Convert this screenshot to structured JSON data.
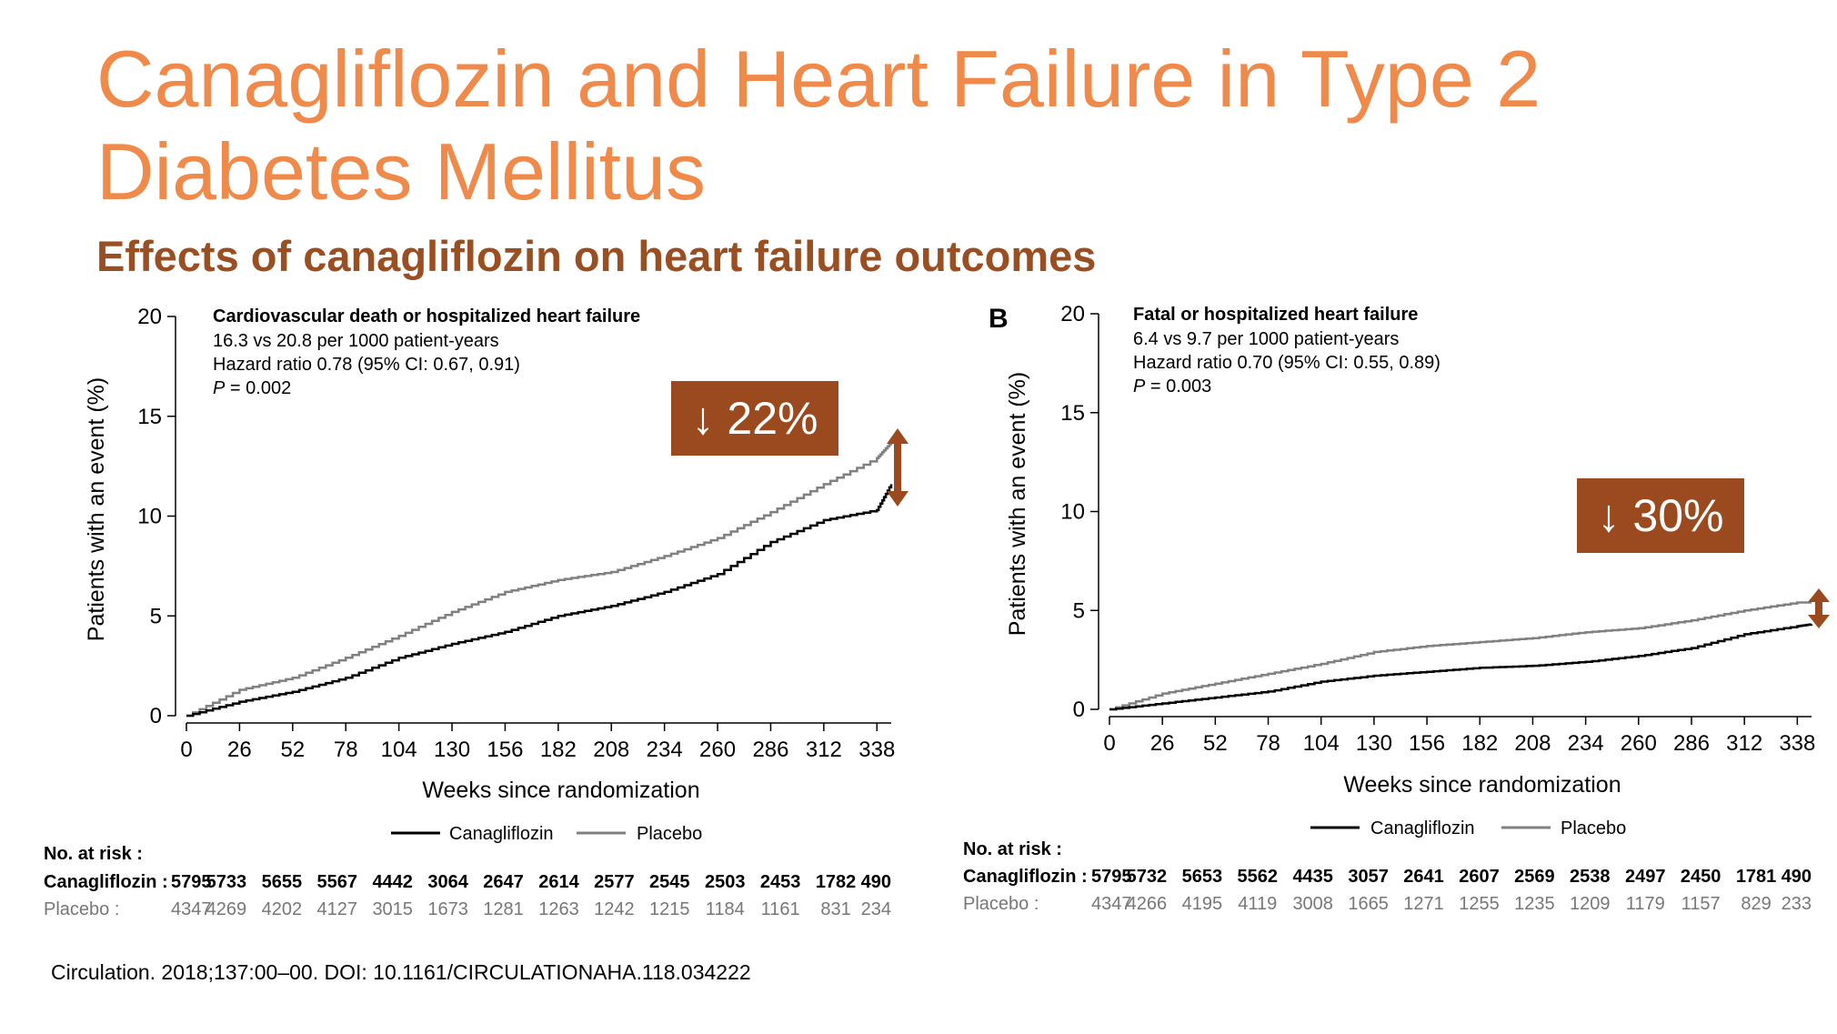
{
  "slide": {
    "title": "Canagliflozin and Heart Failure in Type 2 Diabetes Mellitus",
    "subtitle": "Effects of canagliflozin on heart failure outcomes",
    "citation": "Circulation. 2018;137:00–00. DOI: 10.1161/CIRCULATIONAHA.118.034222",
    "panel_marker": "B"
  },
  "colors": {
    "title": "#f08a4b",
    "subtitle": "#9a4f22",
    "reduction_box": "#9b4a1f",
    "canagliflozin_line": "#000000",
    "placebo_line": "#808080"
  },
  "chart_data": [
    {
      "type": "line",
      "title": "Cardiovascular death or hospitalized heart failure",
      "annotations": [
        "16.3 vs 20.8 per 1000 patient-years",
        "Hazard ratio 0.78 (95% CI: 0.67, 0.91)",
        "P = 0.002"
      ],
      "p_label": "P",
      "p_value_text": " = 0.002",
      "reduction_label": "↓ 22%",
      "xlabel": "Weeks since randomization",
      "ylabel": "Patients with an event (%)",
      "xticks": [
        0,
        26,
        52,
        78,
        104,
        130,
        156,
        182,
        208,
        234,
        260,
        286,
        312,
        338
      ],
      "yticks": [
        0,
        5,
        10,
        15,
        20
      ],
      "xlim": [
        0,
        345
      ],
      "ylim": [
        0,
        20
      ],
      "legend": "bottom",
      "grid": false,
      "x": [
        0,
        26,
        52,
        78,
        104,
        130,
        156,
        182,
        208,
        234,
        260,
        286,
        312,
        338,
        345
      ],
      "series": [
        {
          "name": "Canagliflozin",
          "values": [
            0,
            0.7,
            1.2,
            1.9,
            2.9,
            3.6,
            4.2,
            5.0,
            5.5,
            6.2,
            7.1,
            8.7,
            9.8,
            10.3,
            11.6
          ]
        },
        {
          "name": "Placebo",
          "values": [
            0,
            1.3,
            1.9,
            2.9,
            4.0,
            5.2,
            6.2,
            6.8,
            7.2,
            8.0,
            8.9,
            10.2,
            11.6,
            12.9,
            13.7
          ]
        }
      ],
      "risk_table": {
        "header": "No. at risk :",
        "rows": [
          {
            "label": "Canagliflozin :",
            "values": [
              "5795",
              "5733",
              "5655",
              "5567",
              "4442",
              "3064",
              "2647",
              "2614",
              "2577",
              "2545",
              "2503",
              "2453",
              "1782",
              "490"
            ]
          },
          {
            "label": "Placebo :",
            "values": [
              "4347",
              "4269",
              "4202",
              "4127",
              "3015",
              "1673",
              "1281",
              "1263",
              "1242",
              "1215",
              "1184",
              "1161",
              "831",
              "234"
            ]
          }
        ]
      }
    },
    {
      "type": "line",
      "title": "Fatal or hospitalized heart failure",
      "annotations": [
        "6.4 vs 9.7 per 1000 patient-years",
        "Hazard ratio 0.70 (95% CI: 0.55, 0.89)",
        "P = 0.003"
      ],
      "p_label": "P",
      "p_value_text": " = 0.003",
      "reduction_label": "↓ 30%",
      "xlabel": "Weeks since randomization",
      "ylabel": "Patients with an event (%)",
      "xticks": [
        0,
        26,
        52,
        78,
        104,
        130,
        156,
        182,
        208,
        234,
        260,
        286,
        312,
        338
      ],
      "yticks": [
        0,
        5,
        10,
        15,
        20
      ],
      "xlim": [
        0,
        345
      ],
      "ylim": [
        0,
        20
      ],
      "legend": "bottom",
      "grid": false,
      "x": [
        0,
        26,
        52,
        78,
        104,
        130,
        156,
        182,
        208,
        234,
        260,
        286,
        312,
        338,
        345
      ],
      "series": [
        {
          "name": "Canagliflozin",
          "values": [
            0,
            0.3,
            0.6,
            0.9,
            1.4,
            1.7,
            1.9,
            2.1,
            2.2,
            2.4,
            2.7,
            3.1,
            3.8,
            4.2,
            4.3
          ]
        },
        {
          "name": "Placebo",
          "values": [
            0,
            0.8,
            1.3,
            1.8,
            2.3,
            2.9,
            3.2,
            3.4,
            3.6,
            3.9,
            4.1,
            4.5,
            5.0,
            5.4,
            5.4
          ]
        }
      ],
      "risk_table": {
        "header": "No. at risk :",
        "rows": [
          {
            "label": "Canagliflozin :",
            "values": [
              "5795",
              "5732",
              "5653",
              "5562",
              "4435",
              "3057",
              "2641",
              "2607",
              "2569",
              "2538",
              "2497",
              "2450",
              "1781",
              "490"
            ]
          },
          {
            "label": "Placebo :",
            "values": [
              "4347",
              "4266",
              "4195",
              "4119",
              "3008",
              "1665",
              "1271",
              "1255",
              "1235",
              "1209",
              "1179",
              "1157",
              "829",
              "233"
            ]
          }
        ]
      }
    }
  ]
}
